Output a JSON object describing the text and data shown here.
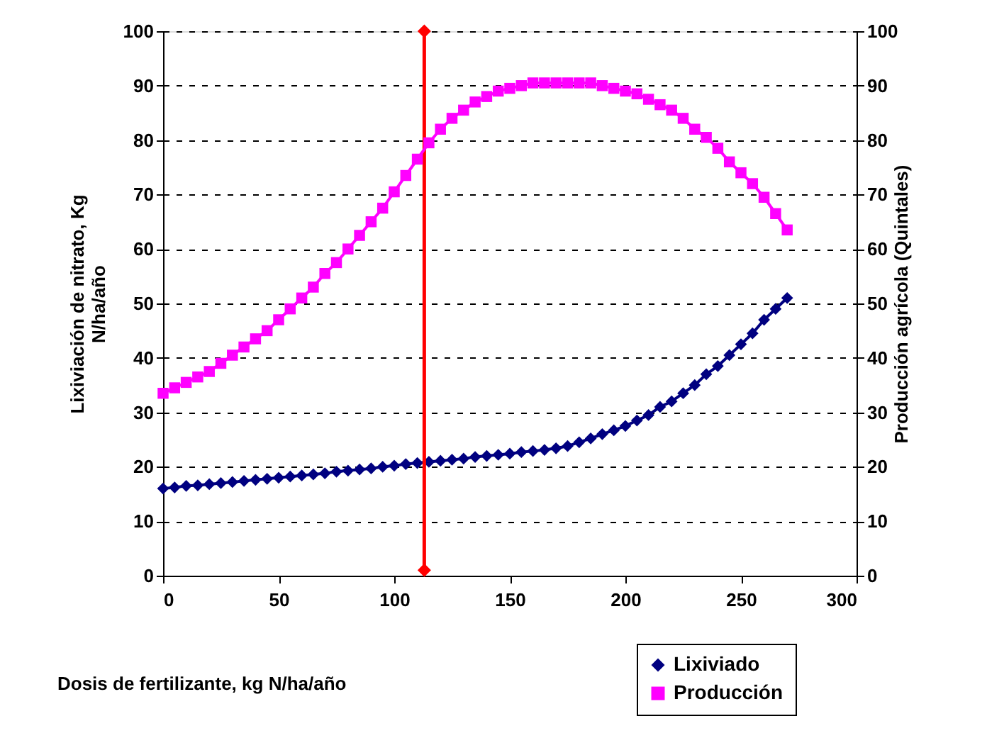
{
  "chart_data": {
    "type": "line",
    "xlabel": "Dosis de fertilizante, kg N/ha/año",
    "ylabel": "Lixiviación de nitrato, Kg N/ha/año",
    "y2label": "Producción agrícola (Quintales)",
    "x": [
      0,
      5,
      10,
      15,
      20,
      25,
      30,
      35,
      40,
      45,
      50,
      55,
      60,
      65,
      70,
      75,
      80,
      85,
      90,
      95,
      100,
      105,
      110,
      115,
      120,
      125,
      130,
      135,
      140,
      145,
      150,
      155,
      160,
      165,
      170,
      175,
      180,
      185,
      190,
      195,
      200,
      205,
      210,
      215,
      220,
      225,
      230,
      235,
      240,
      245,
      250,
      255,
      260,
      265,
      270
    ],
    "series": [
      {
        "name": "Lixiviado",
        "color": "#000080",
        "marker": "diamond",
        "values": [
          16,
          16.2,
          16.5,
          16.6,
          16.8,
          17,
          17.2,
          17.4,
          17.6,
          17.8,
          18,
          18.2,
          18.4,
          18.6,
          18.8,
          19.1,
          19.3,
          19.5,
          19.7,
          20,
          20.2,
          20.5,
          20.7,
          20.9,
          21.1,
          21.3,
          21.5,
          21.8,
          22,
          22.2,
          22.4,
          22.7,
          22.9,
          23.1,
          23.4,
          23.8,
          24.5,
          25.2,
          26,
          26.7,
          27.5,
          28.5,
          29.5,
          31,
          32,
          33.5,
          35,
          37,
          38.5,
          40.5,
          42.5,
          44.5,
          47,
          49,
          51
        ]
      },
      {
        "name": "Producción",
        "color": "#ff00ff",
        "marker": "square",
        "axis": "y2",
        "values": [
          33.5,
          34.5,
          35.5,
          36.5,
          37.5,
          39,
          40.5,
          42,
          43.5,
          45,
          47,
          49,
          51,
          53,
          55.5,
          57.5,
          60,
          62.5,
          65,
          67.5,
          70.5,
          73.5,
          76.5,
          79.5,
          82,
          84,
          85.5,
          87,
          88,
          89,
          89.5,
          90,
          90.5,
          90.5,
          90.5,
          90.5,
          90.5,
          90.5,
          90,
          89.5,
          89,
          88.5,
          87.5,
          86.5,
          85.5,
          84,
          82,
          80.5,
          78.5,
          76,
          74,
          72,
          69.5,
          66.5,
          63.5
        ]
      },
      {
        "color": "#ff0000",
        "marker": "diamond",
        "x": [
          113,
          113
        ],
        "values": [
          1,
          100
        ]
      }
    ],
    "xlim": [
      0,
      300
    ],
    "xticks": [
      0,
      50,
      100,
      150,
      200,
      250,
      300
    ],
    "ylim": [
      0,
      100
    ],
    "yticks": [
      0,
      10,
      20,
      30,
      40,
      50,
      60,
      70,
      80,
      90,
      100
    ],
    "y2lim": [
      0,
      100
    ],
    "y2ticks": [
      0,
      10,
      20,
      30,
      40,
      50,
      60,
      70,
      80,
      90,
      100
    ],
    "grid": "y",
    "legend": "bottom right"
  }
}
